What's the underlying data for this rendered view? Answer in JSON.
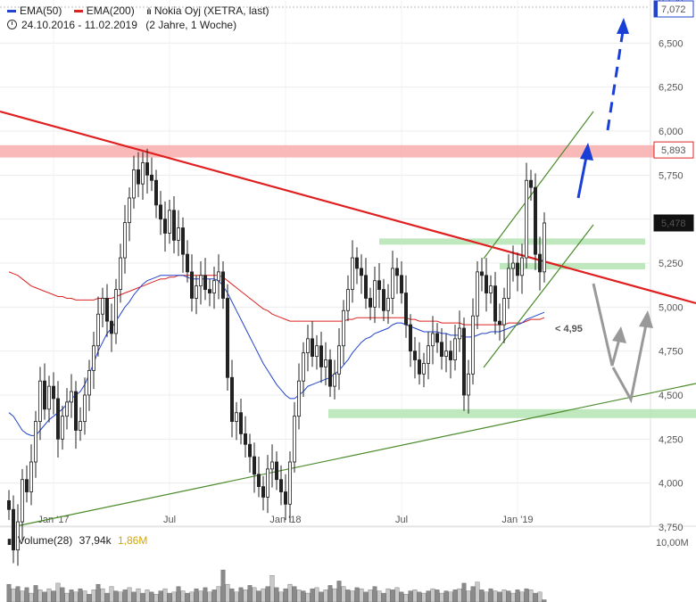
{
  "legend": {
    "ema50": {
      "label": "EMA(50)",
      "color": "#2244cc"
    },
    "ema200": {
      "label": "EMA(200)",
      "color": "#dd2222"
    },
    "instrument": "Nokia Oyj (XETRA, last)",
    "instrument_icon": "candlestick-icon",
    "range": "24.10.2016 - 11.02.2019",
    "range_detail": "(2 Jahre, 1 Woche)",
    "range_icon": "clock-icon"
  },
  "volume_legend": {
    "label": "Volume(28)",
    "value": "37,94k",
    "avg": "1,86M",
    "avg_color": "#d4a800"
  },
  "chart_data": {
    "type": "candlestick",
    "y_axis": {
      "ticks": [
        "6,750",
        "6,500",
        "6,250",
        "6,000",
        "5,750",
        "5,500",
        "5,250",
        "5,000",
        "4,750",
        "4,500",
        "4,250",
        "4,000",
        "3,750"
      ],
      "range": [
        3.55,
        7.2
      ],
      "price_labels": [
        {
          "text": "7,072",
          "value": 7.072
        },
        {
          "text": "5,893",
          "value": 5.893
        },
        {
          "text": "5,478",
          "value": 5.478
        }
      ]
    },
    "x_axis": {
      "ticks": [
        {
          "label": "Jan '17",
          "week": 10
        },
        {
          "label": "Jul",
          "week": 36
        },
        {
          "label": "Jan '18",
          "week": 62
        },
        {
          "label": "Jul",
          "week": 88
        },
        {
          "label": "Jan '19",
          "week": 114
        }
      ],
      "weeks": 121
    },
    "annotation": {
      "text": "< 4,95",
      "value": 4.95
    },
    "volume_axis": {
      "label": "10,00M",
      "max": 10
    },
    "close": [
      3.85,
      3.62,
      3.78,
      4.02,
      3.95,
      4.12,
      4.35,
      4.58,
      4.42,
      4.55,
      4.48,
      4.25,
      4.38,
      4.46,
      4.52,
      4.3,
      4.35,
      4.5,
      4.64,
      4.78,
      4.96,
      5.05,
      4.92,
      4.85,
      5.1,
      5.28,
      5.48,
      5.62,
      5.78,
      5.7,
      5.82,
      5.75,
      5.72,
      5.58,
      5.5,
      5.42,
      5.55,
      5.38,
      5.45,
      5.3,
      5.2,
      5.05,
      5.12,
      5.18,
      5.1,
      5.08,
      5.15,
      5.2,
      5.05,
      4.6,
      4.35,
      4.4,
      4.28,
      4.22,
      4.15,
      4.05,
      3.98,
      3.92,
      4.08,
      4.12,
      4.02,
      3.95,
      3.88,
      4.12,
      4.38,
      4.58,
      4.74,
      4.82,
      4.72,
      4.78,
      4.66,
      4.7,
      4.55,
      4.62,
      4.78,
      4.98,
      5.1,
      5.28,
      5.22,
      5.18,
      5.05,
      5.0,
      5.15,
      5.1,
      4.98,
      5.05,
      5.22,
      5.18,
      5.08,
      4.9,
      4.75,
      4.7,
      4.62,
      4.68,
      4.78,
      4.85,
      4.8,
      4.72,
      4.75,
      4.7,
      4.82,
      4.88,
      4.5,
      4.62,
      4.95,
      5.2,
      5.18,
      5.08,
      5.12,
      4.92,
      4.9,
      5.05,
      5.22,
      5.25,
      5.18,
      5.28,
      5.72,
      5.68,
      5.3,
      5.2,
      5.478
    ],
    "ema50": [
      4.4,
      4.38,
      4.34,
      4.3,
      4.28,
      4.27,
      4.27,
      4.3,
      4.33,
      4.36,
      4.38,
      4.4,
      4.42,
      4.45,
      4.48,
      4.5,
      4.52,
      4.56,
      4.62,
      4.68,
      4.75,
      4.8,
      4.85,
      4.88,
      4.92,
      4.96,
      5.0,
      5.03,
      5.07,
      5.1,
      5.13,
      5.15,
      5.16,
      5.17,
      5.18,
      5.18,
      5.18,
      5.18,
      5.18,
      5.18,
      5.17,
      5.16,
      5.16,
      5.16,
      5.16,
      5.16,
      5.16,
      5.15,
      5.12,
      5.08,
      5.03,
      4.98,
      4.93,
      4.88,
      4.83,
      4.78,
      4.73,
      4.68,
      4.64,
      4.6,
      4.56,
      4.53,
      4.5,
      4.48,
      4.48,
      4.5,
      4.52,
      4.55,
      4.56,
      4.57,
      4.58,
      4.59,
      4.6,
      4.62,
      4.64,
      4.67,
      4.7,
      4.74,
      4.77,
      4.8,
      4.82,
      4.83,
      4.85,
      4.86,
      4.87,
      4.88,
      4.9,
      4.91,
      4.91,
      4.9,
      4.89,
      4.88,
      4.87,
      4.86,
      4.86,
      4.86,
      4.86,
      4.85,
      4.85,
      4.84,
      4.84,
      4.84,
      4.83,
      4.83,
      4.83,
      4.84,
      4.85,
      4.85,
      4.86,
      4.86,
      4.86,
      4.87,
      4.88,
      4.89,
      4.9,
      4.91,
      4.93,
      4.94,
      4.95,
      4.96,
      4.97
    ],
    "ema200": [
      5.2,
      5.19,
      5.18,
      5.16,
      5.14,
      5.12,
      5.11,
      5.1,
      5.09,
      5.08,
      5.07,
      5.06,
      5.06,
      5.05,
      5.05,
      5.04,
      5.04,
      5.04,
      5.04,
      5.04,
      5.05,
      5.05,
      5.05,
      5.05,
      5.06,
      5.07,
      5.08,
      5.09,
      5.1,
      5.11,
      5.12,
      5.13,
      5.14,
      5.15,
      5.16,
      5.16,
      5.17,
      5.17,
      5.18,
      5.18,
      5.18,
      5.18,
      5.18,
      5.18,
      5.18,
      5.18,
      5.18,
      5.18,
      5.17,
      5.15,
      5.13,
      5.11,
      5.09,
      5.07,
      5.05,
      5.03,
      5.01,
      4.99,
      4.98,
      4.96,
      4.95,
      4.94,
      4.93,
      4.92,
      4.92,
      4.92,
      4.92,
      4.92,
      4.92,
      4.92,
      4.92,
      4.92,
      4.92,
      4.92,
      4.92,
      4.92,
      4.93,
      4.93,
      4.94,
      4.94,
      4.94,
      4.94,
      4.94,
      4.94,
      4.94,
      4.94,
      4.94,
      4.94,
      4.94,
      4.94,
      4.93,
      4.93,
      4.92,
      4.92,
      4.92,
      4.92,
      4.92,
      4.91,
      4.91,
      4.91,
      4.91,
      4.91,
      4.9,
      4.9,
      4.9,
      4.9,
      4.9,
      4.9,
      4.9,
      4.9,
      4.9,
      4.9,
      4.91,
      4.91,
      4.91,
      4.91,
      4.92,
      4.93,
      4.93,
      4.93,
      4.94
    ],
    "volume": [
      3.2,
      2.4,
      2.8,
      2.0,
      2.6,
      1.6,
      3.0,
      2.2,
      1.8,
      2.4,
      2.0,
      3.4,
      2.6,
      1.6,
      2.2,
      1.8,
      2.4,
      2.0,
      1.4,
      2.2,
      3.2,
      2.4,
      1.6,
      2.8,
      2.0,
      1.8,
      2.2,
      2.6,
      1.8,
      2.4,
      1.6,
      2.2,
      1.8,
      1.4,
      2.0,
      2.4,
      1.6,
      1.8,
      2.8,
      2.0,
      1.6,
      1.8,
      2.4,
      2.0,
      2.6,
      1.8,
      2.2,
      2.8,
      5.8,
      3.2,
      2.4,
      1.8,
      2.6,
      2.2,
      3.0,
      2.6,
      2.0,
      2.4,
      2.8,
      4.8,
      2.6,
      1.8,
      2.4,
      3.2,
      2.8,
      2.2,
      2.0,
      1.6,
      2.4,
      2.6,
      1.8,
      2.2,
      3.0,
      2.4,
      3.8,
      2.8,
      2.2,
      2.0,
      2.6,
      2.4,
      1.8,
      2.2,
      2.8,
      2.0,
      1.6,
      2.4,
      2.2,
      2.6,
      1.8,
      1.4,
      2.0,
      2.2,
      1.8,
      1.6,
      2.0,
      2.4,
      2.2,
      1.6,
      2.0,
      1.8,
      2.2,
      2.4,
      3.4,
      2.0,
      2.8,
      3.6,
      2.2,
      1.8,
      2.4,
      2.0,
      1.8,
      2.2,
      2.0,
      1.6,
      2.2,
      1.8,
      2.4,
      2.2,
      1.6,
      1.8,
      0.4
    ]
  }
}
